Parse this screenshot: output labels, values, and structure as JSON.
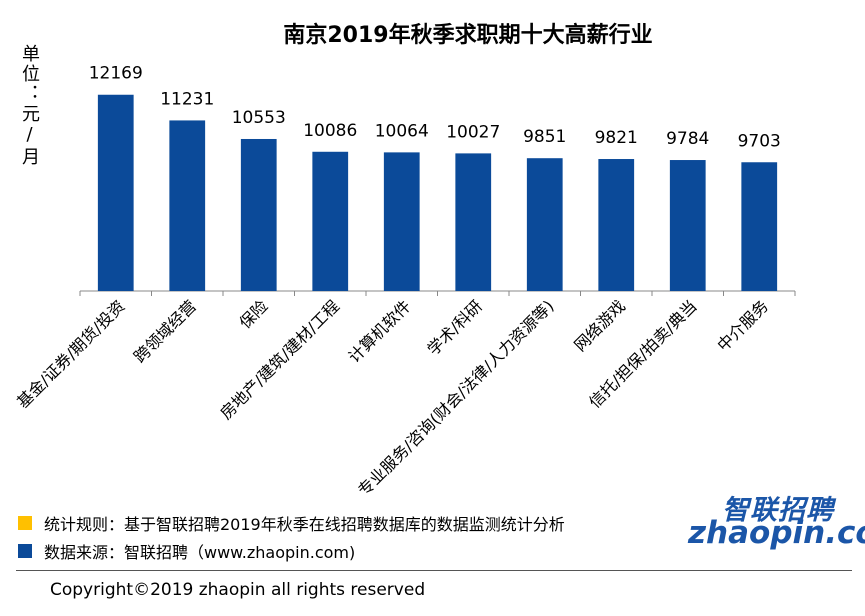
{
  "chart_data": {
    "type": "bar",
    "title": "南京2019年秋季求职期十大高薪行业",
    "y_label": "单位：元/月",
    "categories": [
      "基金/证券/期货/投资",
      "跨领域经营",
      "保险",
      "房地产/建筑/建材/工程",
      "计算机软件",
      "学术/科研",
      "专业服务/咨询(财会/法律/人力资源等)",
      "网络游戏",
      "信托/担保/拍卖/典当",
      "中介服务"
    ],
    "values": [
      12169,
      11231,
      10553,
      10086,
      10064,
      10027,
      9851,
      9821,
      9784,
      9703
    ],
    "color": "#0b4a99",
    "ylim": [
      5000,
      13000
    ]
  },
  "footer": {
    "notes": [
      {
        "text": "统计规则：基于智联招聘2019年秋季在线招聘数据库的数据监测统计分析",
        "color": "#ffc000"
      },
      {
        "text": "数据来源：智联招聘（www.zhaopin.com)",
        "color": "#0b4a99"
      }
    ],
    "logo_name": "智联招聘",
    "logo_site": "zhaopin.com",
    "copyright": "Copyright©2019 zhaopin all rights reserved"
  }
}
